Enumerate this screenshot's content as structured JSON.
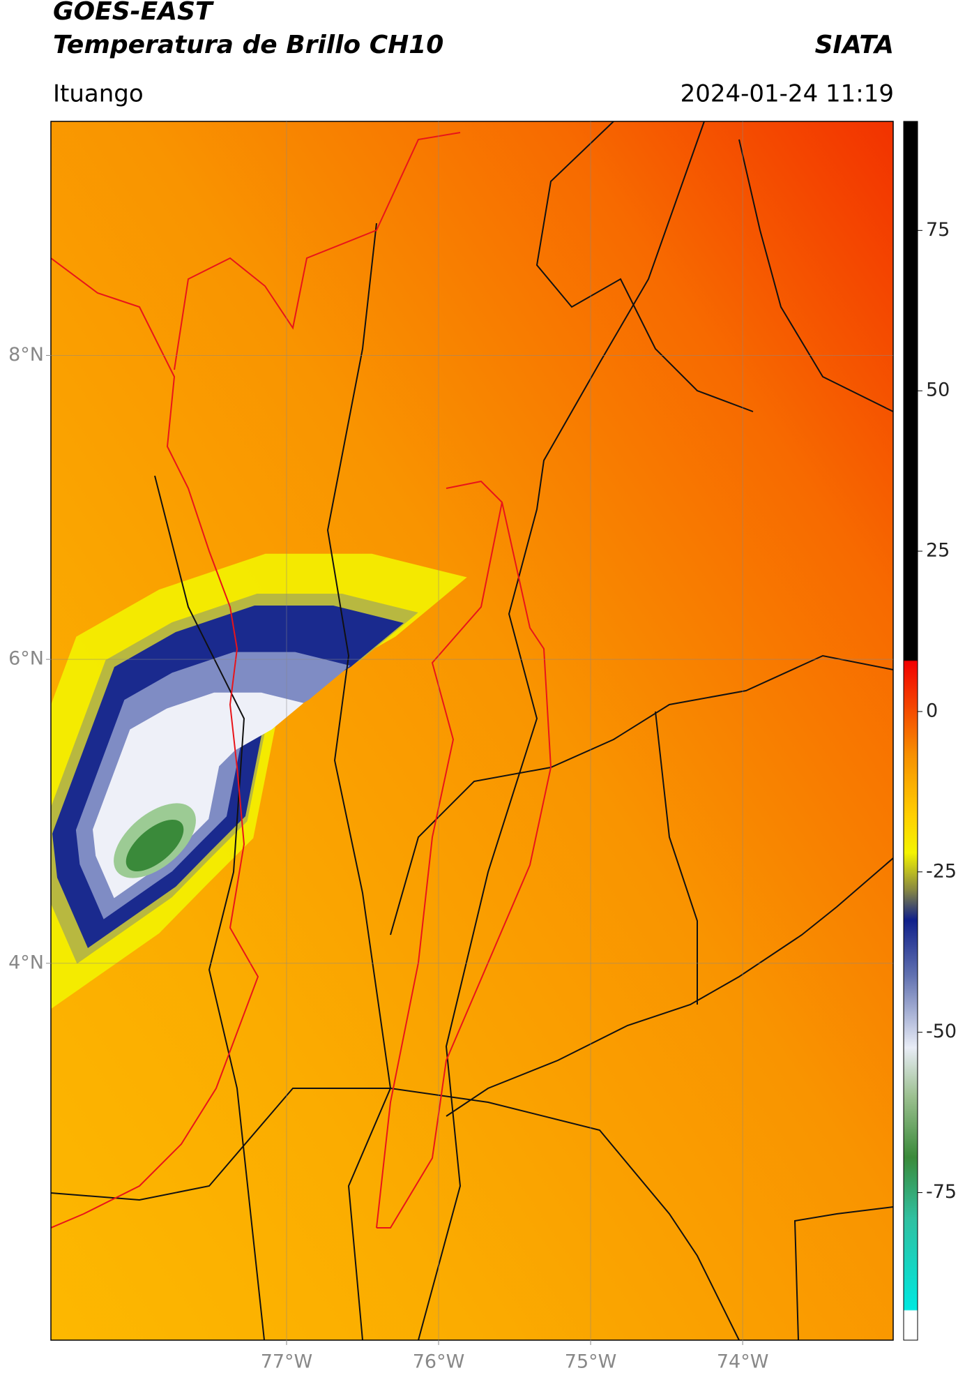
{
  "header": {
    "title": "GOES-EAST",
    "subtitle": "Temperatura de Brillo CH10",
    "org": "SIATA",
    "location": "Ituango",
    "datetime": "2024-01-24 11:19"
  },
  "map": {
    "lonlim": [
      -78.55,
      -73.01
    ],
    "latlim": [
      1.52,
      9.54
    ],
    "lon_ticks": [
      {
        "value": -77,
        "label": "77°W"
      },
      {
        "value": -76,
        "label": "76°W"
      },
      {
        "value": -75,
        "label": "75°W"
      },
      {
        "value": -74,
        "label": "74°W"
      }
    ],
    "lat_ticks": [
      {
        "value": 8,
        "label": "8°N"
      },
      {
        "value": 6,
        "label": "6°N"
      },
      {
        "value": 4,
        "label": "4°N"
      }
    ],
    "grid": true
  },
  "colorbar": {
    "lim": [
      -98,
      92
    ],
    "ticks": [
      75,
      50,
      25,
      0,
      -25,
      -50,
      -75
    ]
  }
}
